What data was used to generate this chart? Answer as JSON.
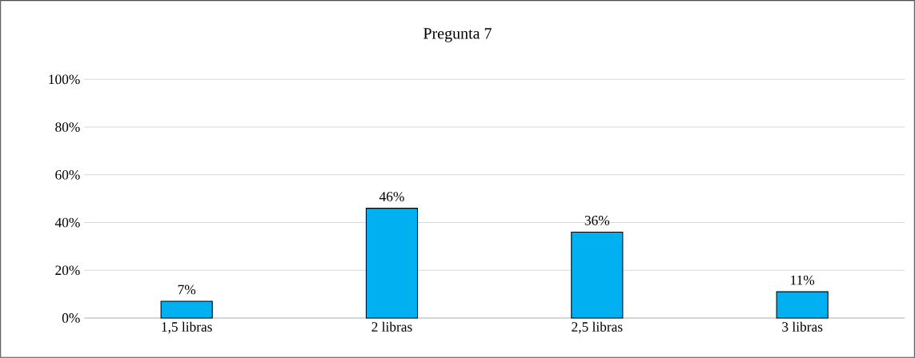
{
  "chart_data": {
    "type": "bar",
    "title": "Pregunta 7",
    "categories": [
      "1,5 libras",
      "2 libras",
      "2,5 libras",
      "3 libras"
    ],
    "values": [
      7,
      46,
      36,
      11
    ],
    "value_labels": [
      "7%",
      "46%",
      "36%",
      "11%"
    ],
    "color": "#00b0f0",
    "ylim": [
      0,
      100
    ],
    "yticks": [
      {
        "value": 0,
        "label": "0%"
      },
      {
        "value": 20,
        "label": "20%"
      },
      {
        "value": 40,
        "label": "40%"
      },
      {
        "value": 60,
        "label": "60%"
      },
      {
        "value": 80,
        "label": "80%"
      },
      {
        "value": 100,
        "label": "100%"
      }
    ],
    "grid": "y"
  }
}
